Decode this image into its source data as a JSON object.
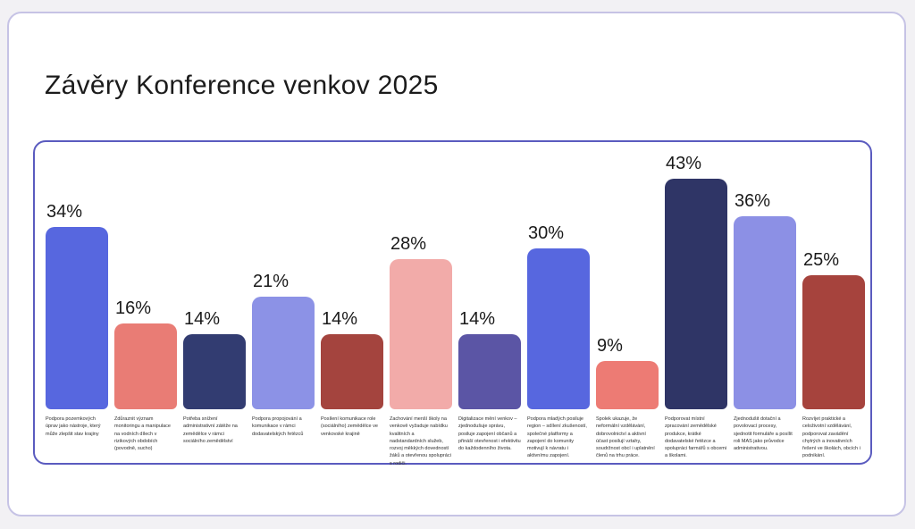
{
  "title": "Závěry Konference venkov 2025",
  "colors": {
    "page_background": "#F2F1F4",
    "slide_card_background": "#FFFFFF",
    "slide_card_border": "#C6C3E5",
    "chart_card_border": "#5A5BBF",
    "value_label_text": "#1A1A1A",
    "caption_text": "#2E2E2E"
  },
  "chart_data": {
    "type": "bar",
    "title": "Závěry Konference venkov 2025",
    "xlabel": "",
    "ylabel": "",
    "unit": "%",
    "ylim": [
      0,
      45
    ],
    "grid": false,
    "legend": "none",
    "value_label_position": "above bars",
    "values": [
      34,
      16,
      14,
      21,
      14,
      28,
      14,
      30,
      9,
      43,
      36,
      25
    ],
    "labels": [
      "34%",
      "16%",
      "14%",
      "21%",
      "14%",
      "28%",
      "14%",
      "30%",
      "9%",
      "43%",
      "36%",
      "25%"
    ],
    "bar_colors": [
      "#5767DF",
      "#E97C75",
      "#323C71",
      "#8C92E6",
      "#A4443E",
      "#F2ABA9",
      "#5B55A5",
      "#5767DF",
      "#ED7B74",
      "#2F3566",
      "#8C90E5",
      "#A6433D"
    ],
    "categories": [
      "Podpora pozemkových úprav jako nástroje, který může zlepšit stav krajiny",
      "Zdůraznit význam monitoringu a manipulace na vodních dílech v rizikových obdobích (povodně, sucho)",
      "Potřeba snížení administrativní zátěže na zemědělce v rámci sociálního zemědělství",
      "Podpora propojování a komunikace v rámci dodavatelských řetězců",
      "Posílení komunikace role (sociálního) zemědělce ve venkovské krajině",
      "Zachování menší školy na venkově vyžaduje nabídku kvalitních a nadstandardních služeb, rozvoj měkkých dovedností žáků a otevřenou spolupráci s rodiči.",
      "Digitalizace mění venkov – zjednodušuje správu, posiluje zapojení občanů a přináší otevřenost i efektivitu do každodenního života.",
      "Podpora mladých posiluje region – sdílení zkušeností, společné platformy a zapojení do komunity motivují k návratu i aktivnímu zapojení.",
      "Spolek ukazuje, že neformální vzdělávání, dobrovolnictví a aktivní účast posilují vztahy, soudržnost obcí i uplatnění členů na trhu práce.",
      "Podporovat místní zpracování zemědělské produkce, krátké dodavatelské řetězce a spolupráci farmářů s obcemi a školami.",
      "Zjednodušit dotační a povolovací procesy, sjednotit formuláře a posílit roli MAS jako průvodce administrativou.",
      "Rozvíjet praktické a celoživotní vzdělávání, podporovat zavádění chytrých a inovativních řešení ve školách, obcích i podnikání."
    ]
  }
}
